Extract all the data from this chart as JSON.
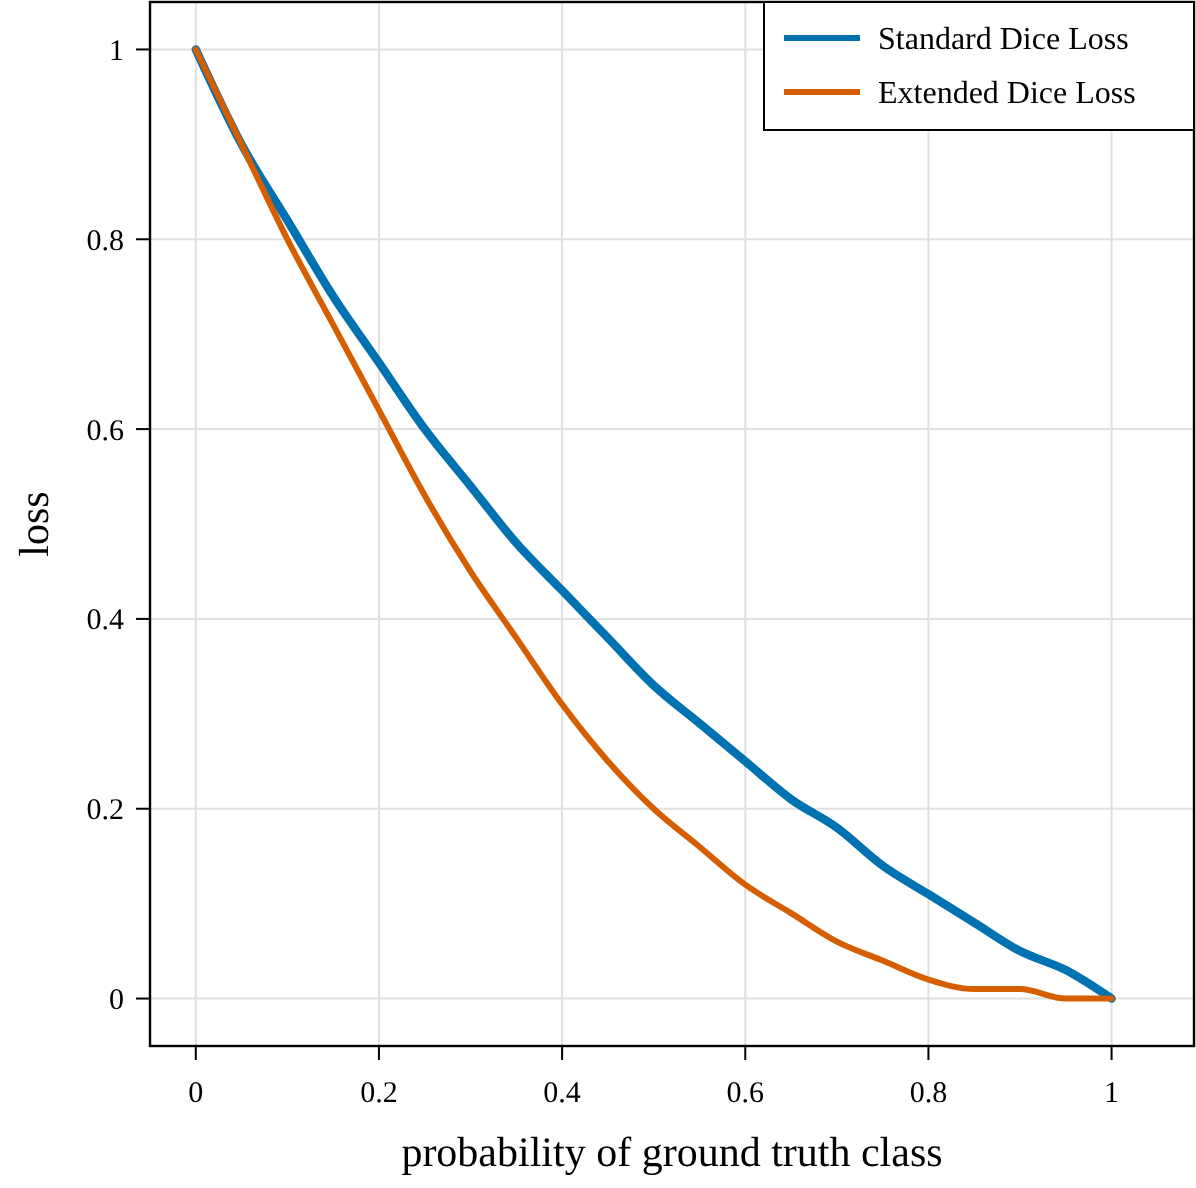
{
  "chart_data": {
    "type": "line",
    "xlabel": "probability of ground truth class",
    "ylabel": "loss",
    "x": [
      0,
      0.05,
      0.1,
      0.15,
      0.2,
      0.25,
      0.3,
      0.35,
      0.4,
      0.45,
      0.5,
      0.55,
      0.6,
      0.65,
      0.7,
      0.75,
      0.8,
      0.85,
      0.9,
      0.95,
      1
    ],
    "series": [
      {
        "name": "Standard Dice Loss",
        "color": "#0072b2",
        "values": [
          1,
          0.9,
          0.82,
          0.74,
          0.67,
          0.6,
          0.54,
          0.48,
          0.43,
          0.38,
          0.33,
          0.29,
          0.25,
          0.21,
          0.18,
          0.14,
          0.11,
          0.08,
          0.05,
          0.03,
          0
        ]
      },
      {
        "name": "Extended Dice Loss",
        "color": "#d55e00",
        "values": [
          1,
          0.9,
          0.8,
          0.71,
          0.62,
          0.53,
          0.45,
          0.38,
          0.31,
          0.25,
          0.2,
          0.16,
          0.12,
          0.09,
          0.06,
          0.04,
          0.02,
          0.01,
          0.01,
          0,
          0
        ]
      }
    ],
    "xlim": [
      -0.05,
      1.09
    ],
    "ylim": [
      -0.05,
      1.05
    ],
    "xticks": [
      0,
      0.2,
      0.4,
      0.6,
      0.8,
      1
    ],
    "yticks": [
      0,
      0.2,
      0.4,
      0.6,
      0.8,
      1
    ],
    "grid": true,
    "legend": "top right",
    "line_style": "solid",
    "marker": "none"
  }
}
